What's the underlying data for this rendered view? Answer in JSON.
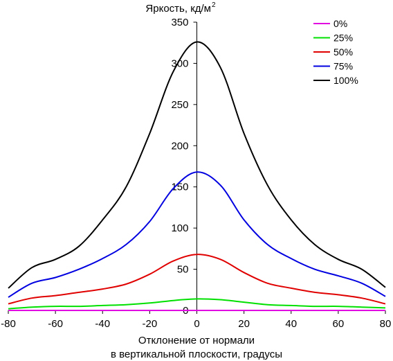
{
  "chart_data": {
    "type": "line",
    "title": "",
    "ylabel": "Яркость, кд/м",
    "ylabel_sup": "2",
    "xlabel_line1": "Отклонение от нормали",
    "xlabel_line2": "в вертикальной плоскости, градусы",
    "xlim": [
      -80,
      80
    ],
    "ylim": [
      0,
      350
    ],
    "xticks": [
      -80,
      -60,
      -40,
      -20,
      0,
      20,
      40,
      60,
      80
    ],
    "yticks": [
      0,
      50,
      100,
      150,
      200,
      250,
      300,
      350
    ],
    "grid": false,
    "legend_position": "top-right",
    "x": [
      -80,
      -70,
      -60,
      -50,
      -40,
      -30,
      -20,
      -10,
      0,
      10,
      20,
      30,
      40,
      50,
      60,
      70,
      80
    ],
    "series": [
      {
        "name": "0%",
        "color": "#e000e0",
        "values": [
          0,
          0,
          0,
          0,
          0,
          0,
          0,
          0,
          0,
          0,
          0,
          0,
          0,
          0,
          0,
          0,
          0
        ]
      },
      {
        "name": "25%",
        "color": "#00e000",
        "values": [
          2,
          4,
          5,
          5,
          6,
          7,
          9,
          12,
          14,
          13,
          10,
          7,
          6,
          5,
          5,
          4,
          3
        ]
      },
      {
        "name": "50%",
        "color": "#e00000",
        "values": [
          8,
          15,
          18,
          22,
          26,
          32,
          44,
          60,
          68,
          62,
          46,
          33,
          27,
          22,
          19,
          15,
          8
        ]
      },
      {
        "name": "75%",
        "color": "#0000e0",
        "values": [
          16,
          33,
          40,
          50,
          63,
          80,
          108,
          148,
          168,
          152,
          110,
          80,
          63,
          50,
          42,
          33,
          17
        ]
      },
      {
        "name": "100%",
        "color": "#000000",
        "values": [
          27,
          52,
          62,
          78,
          110,
          150,
          215,
          290,
          326,
          295,
          215,
          152,
          110,
          80,
          62,
          50,
          28
        ]
      }
    ]
  }
}
